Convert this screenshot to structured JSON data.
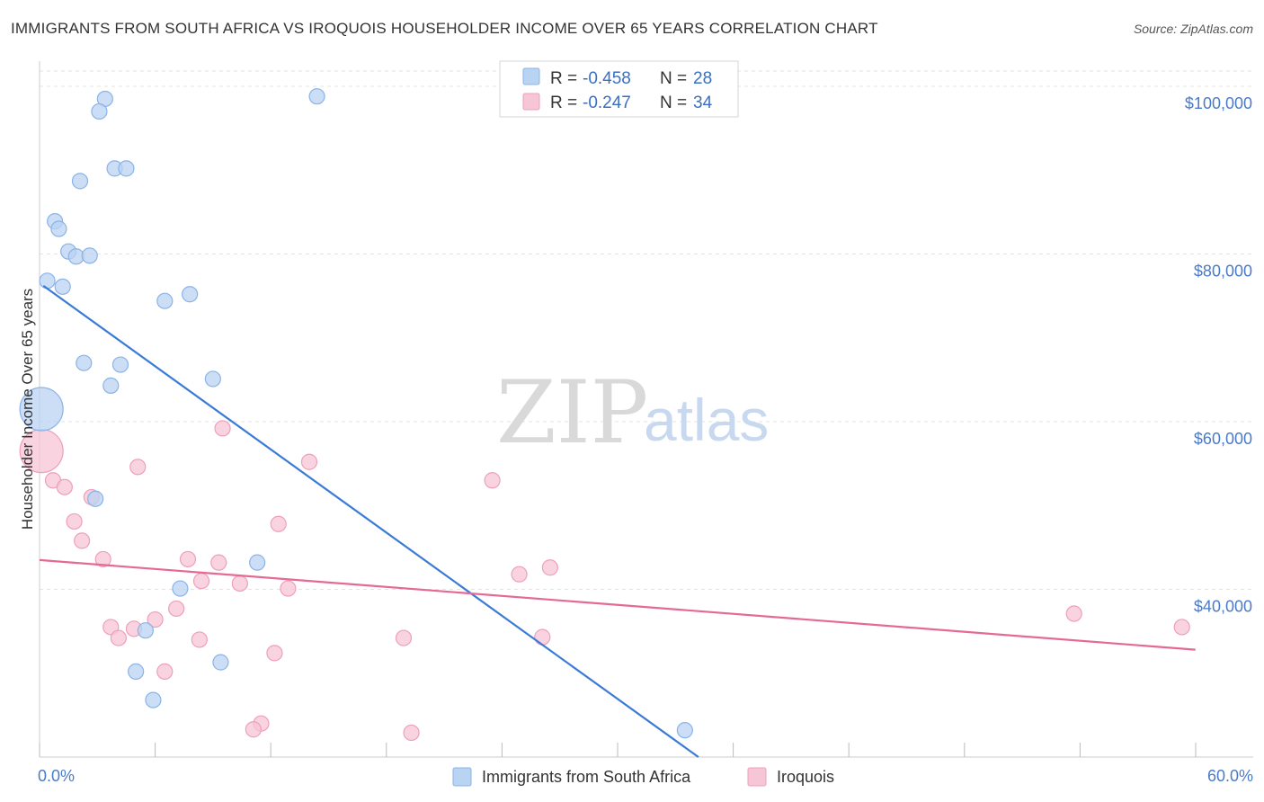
{
  "header": {
    "title": "IMMIGRANTS FROM SOUTH AFRICA VS IROQUOIS HOUSEHOLDER INCOME OVER 65 YEARS CORRELATION CHART",
    "source": "Source: ZipAtlas.com"
  },
  "watermark": {
    "zip": "ZIP",
    "atlas": "atlas"
  },
  "colors": {
    "blue_fill": "#b9d3f3",
    "blue_stroke": "#8ab3e8",
    "blue_line": "#3a7bd5",
    "pink_fill": "#f7c6d6",
    "pink_stroke": "#ee9fbb",
    "pink_line": "#e46a94",
    "grid": "#e3e3e3",
    "tick_label": "#4a7bc8"
  },
  "chart_data": {
    "type": "scatter",
    "title": "IMMIGRANTS FROM SOUTH AFRICA VS IROQUOIS HOUSEHOLDER INCOME OVER 65 YEARS CORRELATION CHART",
    "xlabel": "",
    "ylabel": "Householder Income Over 65 years",
    "xlim": [
      0,
      63
    ],
    "ylim": [
      20000,
      103000
    ],
    "x_tick_labels": [
      "0.0%",
      "60.0%"
    ],
    "y_ticks": [
      100000,
      80000,
      60000,
      40000
    ],
    "y_tick_labels": [
      "$100,000",
      "$80,000",
      "$60,000",
      "$40,000"
    ],
    "legend": [
      {
        "swatch": "blue",
        "r_label": "R = ",
        "r_value": "-0.458",
        "n_label": "N = ",
        "n_value": "28"
      },
      {
        "swatch": "pink",
        "r_label": "R = ",
        "r_value": "-0.247",
        "n_label": "N = ",
        "n_value": "34"
      }
    ],
    "series": [
      {
        "name": "Immigrants from South Africa",
        "color": "blue",
        "trend": {
          "x0": 0.2,
          "y0": 76200,
          "x1": 34.2,
          "y1": 20000
        },
        "points": [
          {
            "x": 3.4,
            "y": 98500
          },
          {
            "x": 3.1,
            "y": 97000
          },
          {
            "x": 14.4,
            "y": 98800
          },
          {
            "x": 3.9,
            "y": 90200
          },
          {
            "x": 4.5,
            "y": 90200
          },
          {
            "x": 2.1,
            "y": 88700
          },
          {
            "x": 0.8,
            "y": 83900
          },
          {
            "x": 1.0,
            "y": 83000
          },
          {
            "x": 1.5,
            "y": 80300
          },
          {
            "x": 1.9,
            "y": 79700
          },
          {
            "x": 2.6,
            "y": 79800
          },
          {
            "x": 0.4,
            "y": 76800
          },
          {
            "x": 1.2,
            "y": 76100
          },
          {
            "x": 7.8,
            "y": 75200
          },
          {
            "x": 6.5,
            "y": 74400
          },
          {
            "x": 2.3,
            "y": 67000
          },
          {
            "x": 4.2,
            "y": 66800
          },
          {
            "x": 9.0,
            "y": 65100
          },
          {
            "x": 3.7,
            "y": 64300
          },
          {
            "x": 0.1,
            "y": 61500,
            "size": "large"
          },
          {
            "x": 2.9,
            "y": 50800
          },
          {
            "x": 11.3,
            "y": 43200
          },
          {
            "x": 7.3,
            "y": 40100
          },
          {
            "x": 5.5,
            "y": 35100
          },
          {
            "x": 9.4,
            "y": 31300
          },
          {
            "x": 5.0,
            "y": 30200
          },
          {
            "x": 5.9,
            "y": 26800
          },
          {
            "x": 33.5,
            "y": 23200
          }
        ]
      },
      {
        "name": "Iroquois",
        "color": "pink",
        "trend": {
          "x0": 0,
          "y0": 43500,
          "x1": 60,
          "y1": 32800
        },
        "points": [
          {
            "x": 0.1,
            "y": 56500,
            "size": "large"
          },
          {
            "x": 9.5,
            "y": 59200
          },
          {
            "x": 14.0,
            "y": 55200
          },
          {
            "x": 5.1,
            "y": 54600
          },
          {
            "x": 23.5,
            "y": 53000
          },
          {
            "x": 0.7,
            "y": 53000
          },
          {
            "x": 1.3,
            "y": 52200
          },
          {
            "x": 2.7,
            "y": 51000
          },
          {
            "x": 1.8,
            "y": 48100
          },
          {
            "x": 12.4,
            "y": 47800
          },
          {
            "x": 2.2,
            "y": 45800
          },
          {
            "x": 3.3,
            "y": 43600
          },
          {
            "x": 7.7,
            "y": 43600
          },
          {
            "x": 9.3,
            "y": 43200
          },
          {
            "x": 26.5,
            "y": 42600
          },
          {
            "x": 24.9,
            "y": 41800
          },
          {
            "x": 8.4,
            "y": 41000
          },
          {
            "x": 10.4,
            "y": 40700
          },
          {
            "x": 12.9,
            "y": 40100
          },
          {
            "x": 7.1,
            "y": 37700
          },
          {
            "x": 53.7,
            "y": 37100
          },
          {
            "x": 6.0,
            "y": 36400
          },
          {
            "x": 3.7,
            "y": 35500
          },
          {
            "x": 4.9,
            "y": 35300
          },
          {
            "x": 59.3,
            "y": 35500
          },
          {
            "x": 4.1,
            "y": 34200
          },
          {
            "x": 8.3,
            "y": 34000
          },
          {
            "x": 18.9,
            "y": 34200
          },
          {
            "x": 26.1,
            "y": 34300
          },
          {
            "x": 12.2,
            "y": 32400
          },
          {
            "x": 6.5,
            "y": 30200
          },
          {
            "x": 11.5,
            "y": 24000
          },
          {
            "x": 11.1,
            "y": 23300
          },
          {
            "x": 19.3,
            "y": 22900
          }
        ]
      }
    ]
  }
}
